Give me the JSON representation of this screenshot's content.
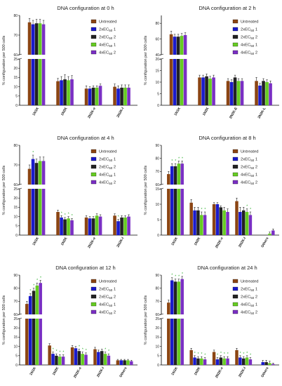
{
  "colors": {
    "series": [
      "#8B4513",
      "#1a1acc",
      "#222222",
      "#66cc22",
      "#7a2fc4"
    ],
    "axis": "#000000",
    "errorbar": "#000000",
    "significance": "#22aa22"
  },
  "chart_data": [
    {
      "type": "bar",
      "title": "DNA configuration at 0 h",
      "ylabel": "% configuration per 500 cells",
      "categories": [
        "1N1K",
        "1N2K",
        "2N2K-e",
        "2N2K-l"
      ],
      "ylim": [
        0,
        80
      ],
      "axis_break": [
        25,
        60
      ],
      "yticks": [
        0,
        5,
        10,
        15,
        20,
        25,
        60,
        70,
        80
      ],
      "legend_position": "top-right",
      "series": [
        {
          "name": "Untreated",
          "values": [
            76.5,
            13.0,
            9.0,
            10.0
          ]
        },
        {
          "name": "2xEC50 1",
          "values": [
            75.5,
            13.5,
            9.0,
            9.0
          ]
        },
        {
          "name": "2xEC50 2",
          "values": [
            76.0,
            14.0,
            9.5,
            9.5
          ]
        },
        {
          "name": "4xEC50 1",
          "values": [
            76.0,
            13.5,
            9.5,
            9.5
          ]
        },
        {
          "name": "4xEC50 2",
          "values": [
            75.5,
            14.0,
            10.5,
            9.5
          ]
        }
      ],
      "errors": [
        [
          2,
          1.5,
          1.5,
          1.5
        ],
        [
          2,
          2,
          1,
          1.5
        ],
        [
          2,
          2.5,
          1,
          1.5
        ],
        [
          2,
          2,
          1,
          1.5
        ],
        [
          2,
          2,
          1,
          1.5
        ]
      ],
      "significance": [
        [],
        [],
        [],
        []
      ]
    },
    {
      "type": "bar",
      "title": "DNA configuration at 2 h",
      "ylabel": "% configuration per 500 cells",
      "categories": [
        "1N1K",
        "1N2K",
        "2N2K-E",
        "2N2K-L"
      ],
      "ylim": [
        0,
        90
      ],
      "axis_break": [
        20,
        40
      ],
      "yticks": [
        0,
        5,
        10,
        15,
        20,
        40,
        60,
        80
      ],
      "legend_position": "top-right",
      "series": [
        {
          "name": "Untreated",
          "values": [
            66,
            12,
            10.5,
            10.5
          ]
        },
        {
          "name": "2xEC50 1",
          "values": [
            63,
            12,
            10.0,
            8.5
          ]
        },
        {
          "name": "2xEC50 2",
          "values": [
            63,
            12.5,
            12.0,
            10.5
          ]
        },
        {
          "name": "4xEC50 1",
          "values": [
            64,
            11.5,
            10.5,
            10.0
          ]
        },
        {
          "name": "4xEC50 2",
          "values": [
            65,
            12,
            10.5,
            9.5
          ]
        }
      ],
      "errors": [
        [
          4,
          1,
          1,
          1.5
        ],
        [
          3,
          1,
          1,
          1
        ],
        [
          3,
          1,
          1,
          1
        ],
        [
          3,
          1,
          1,
          1
        ],
        [
          3,
          1,
          1,
          1
        ]
      ],
      "significance": [
        [],
        [],
        [],
        []
      ]
    },
    {
      "type": "bar",
      "title": "DNA configuration at 4 h",
      "ylabel": "% configuration per 500 cells",
      "categories": [
        "1N1K",
        "1N2K",
        "2N2K-e",
        "2N2K-l"
      ],
      "ylim": [
        0,
        80
      ],
      "axis_break": [
        25,
        60
      ],
      "yticks": [
        0,
        5,
        10,
        15,
        20,
        25,
        60,
        70,
        80
      ],
      "legend_position": "top-right",
      "series": [
        {
          "name": "Untreated",
          "values": [
            68,
            12.5,
            9.5,
            10.5
          ]
        },
        {
          "name": "2xEC50 1",
          "values": [
            73,
            9.5,
            9.0,
            7.5
          ]
        },
        {
          "name": "2xEC50 2",
          "values": [
            71,
            8.5,
            9.0,
            9.5
          ]
        },
        {
          "name": "4xEC50 1",
          "values": [
            72,
            9.0,
            10.5,
            9.5
          ]
        },
        {
          "name": "4xEC50 2",
          "values": [
            72,
            8.0,
            10.0,
            10.0
          ]
        }
      ],
      "errors": [
        [
          2,
          1,
          1,
          1
        ],
        [
          2,
          1,
          1,
          1
        ],
        [
          2,
          1,
          1,
          1
        ],
        [
          2,
          1,
          1,
          1
        ],
        [
          2,
          1,
          1,
          1
        ]
      ],
      "significance": [
        [
          "",
          "*",
          "",
          "",
          ""
        ],
        [
          "",
          "*",
          "*",
          "*",
          "*"
        ],
        [],
        [
          "",
          "*",
          "",
          "",
          ""
        ]
      ]
    },
    {
      "type": "bar",
      "title": "DNA configuration at 8 h",
      "ylabel": "% configuration per 500 cells",
      "categories": [
        "1N1K",
        "1N2K",
        "2N2K-e",
        "2N2K-l",
        "Others"
      ],
      "ylim": [
        0,
        90
      ],
      "axis_break": [
        15,
        60
      ],
      "yticks": [
        0,
        5,
        10,
        15,
        60,
        70,
        80,
        90
      ],
      "legend_position": "top-right",
      "series": [
        {
          "name": "Untreated",
          "values": [
            68,
            10.5,
            10.0,
            11.0,
            0
          ]
        },
        {
          "name": "2xEC50 1",
          "values": [
            74,
            8.0,
            10.0,
            7.5,
            0
          ]
        },
        {
          "name": "2xEC50 2",
          "values": [
            74,
            8.0,
            9.0,
            8.0,
            0
          ]
        },
        {
          "name": "4xEC50 1",
          "values": [
            76,
            6.5,
            8.0,
            7.5,
            0.5
          ]
        },
        {
          "name": "4xEC50 2",
          "values": [
            76,
            6.5,
            7.5,
            6.5,
            1.5
          ]
        }
      ],
      "errors": [
        [
          2,
          1,
          0.5,
          1,
          0
        ],
        [
          2,
          1,
          0.5,
          1.5,
          0
        ],
        [
          2,
          1,
          0.5,
          1,
          0
        ],
        [
          2,
          1,
          1,
          1,
          0.5
        ],
        [
          2,
          1,
          1,
          1,
          0.5
        ]
      ],
      "significance": [
        [
          "",
          "*",
          "*",
          "*",
          "*"
        ],
        [
          "",
          "",
          "",
          "*",
          "*"
        ],
        [],
        [
          "",
          "",
          "",
          "*",
          "*"
        ],
        []
      ]
    },
    {
      "type": "bar",
      "title": "DNA configuration at 12 h",
      "ylabel": "% configuration per 500 cells",
      "categories": [
        "1N1K",
        "1N2K",
        "2N2K-e",
        "2N2K-l",
        "Others"
      ],
      "ylim": [
        0,
        90
      ],
      "axis_break": [
        25,
        60
      ],
      "yticks": [
        0,
        5,
        10,
        15,
        20,
        25,
        60,
        70,
        80,
        90
      ],
      "legend_position": "top-right",
      "series": [
        {
          "name": "Untreated",
          "values": [
            68,
            10.5,
            9.5,
            8.5,
            2.5
          ]
        },
        {
          "name": "2xEC50 1",
          "values": [
            74,
            6.0,
            9.0,
            7.0,
            2.5
          ]
        },
        {
          "name": "2xEC50 2",
          "values": [
            78,
            5.0,
            7.5,
            7.5,
            2.5
          ]
        },
        {
          "name": "4xEC50 1",
          "values": [
            82,
            4.5,
            6.0,
            6.0,
            2.5
          ]
        },
        {
          "name": "4xEC50 2",
          "values": [
            84,
            4.5,
            5.5,
            5.0,
            2.0
          ]
        }
      ],
      "errors": [
        [
          2,
          1,
          1,
          1,
          0.5
        ],
        [
          2,
          1,
          1,
          1,
          0.5
        ],
        [
          2,
          1,
          1,
          1,
          0.5
        ],
        [
          2,
          1,
          1,
          1,
          0.5
        ],
        [
          2,
          1,
          1,
          1,
          0.5
        ]
      ],
      "significance": [
        [
          "",
          "*",
          "*",
          "*",
          "*"
        ],
        [
          "",
          "*",
          "*",
          "*",
          "*"
        ],
        [
          "",
          "",
          "*",
          "*",
          "*"
        ],
        [
          "",
          "",
          "",
          "*",
          "*"
        ],
        []
      ]
    },
    {
      "type": "bar",
      "title": "DNA configuration at 24 h",
      "ylabel": "% configuration per 500 cells",
      "categories": [
        "1N1K",
        "1N2K",
        "2N2K-e",
        "2N2K-l",
        "Others"
      ],
      "ylim": [
        0,
        90
      ],
      "axis_break": [
        25,
        60
      ],
      "yticks": [
        0,
        5,
        10,
        15,
        20,
        25,
        60,
        70,
        80,
        90
      ],
      "legend_position": "top-right",
      "series": [
        {
          "name": "Untreated",
          "values": [
            69,
            8.0,
            7.0,
            8.0,
            0
          ]
        },
        {
          "name": "2xEC50 1",
          "values": [
            86,
            4.0,
            3.0,
            4.0,
            1.5
          ]
        },
        {
          "name": "2xEC50 2",
          "values": [
            85,
            3.5,
            4.0,
            3.5,
            1.5
          ]
        },
        {
          "name": "4xEC50 1",
          "values": [
            85,
            3.5,
            3.5,
            4.0,
            1.0
          ]
        },
        {
          "name": "4xEC50 2",
          "values": [
            87,
            3.0,
            3.5,
            3.0,
            0.5
          ]
        }
      ],
      "errors": [
        [
          2,
          1,
          1,
          1,
          0
        ],
        [
          2,
          1,
          1,
          1,
          1
        ],
        [
          2,
          1,
          1,
          1,
          1
        ],
        [
          2,
          1,
          1,
          1,
          1
        ],
        [
          2,
          1,
          1,
          1,
          0.5
        ]
      ],
      "significance": [
        [
          "",
          "*",
          "*",
          "*",
          "*"
        ],
        [
          "",
          "*",
          "*",
          "*",
          "*"
        ],
        [
          "",
          "*",
          "*",
          "*",
          "*"
        ],
        [
          "",
          "*",
          "*",
          "*",
          "*"
        ],
        []
      ]
    }
  ]
}
